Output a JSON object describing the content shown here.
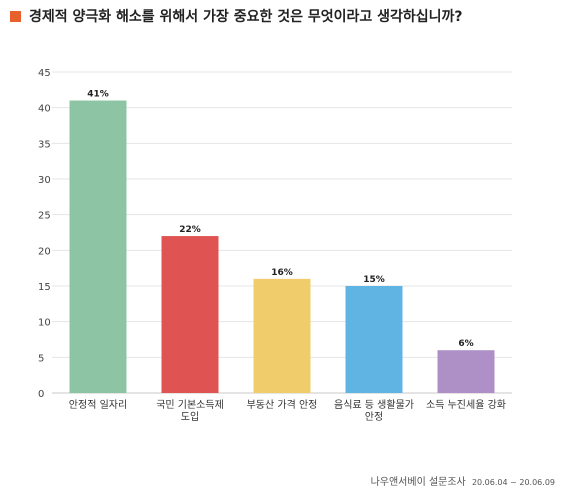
{
  "title": "경제적 양극화 해소를 위해서 가장 중요한 것은 무엇이라고 생각하십니까?",
  "colors": {
    "title_marker": "#E8612C",
    "grid": "#e4e4e4",
    "axis_text": "#444444"
  },
  "source": {
    "name": "나우앤서베이 설문조사",
    "dates": "20.06.04 ~ 20.06.09"
  },
  "chart_data": {
    "type": "bar",
    "title": "경제적 양극화 해소를 위해서 가장 중요한 것은 무엇이라고 생각하십니까?",
    "xlabel": "",
    "ylabel": "",
    "ylim": [
      0,
      45
    ],
    "yticks": [
      0,
      5,
      10,
      15,
      20,
      25,
      30,
      35,
      40,
      45
    ],
    "grid": true,
    "legend": "none",
    "categories": [
      [
        "안정적 일자리"
      ],
      [
        "국민 기본소득제",
        "도입"
      ],
      [
        "부동산 가격 안정"
      ],
      [
        "음식료 등 생활물가",
        "안정"
      ],
      [
        "소득 누진세율 강화"
      ]
    ],
    "values": [
      41,
      22,
      16,
      15,
      6
    ],
    "value_labels": [
      "41%",
      "22%",
      "16%",
      "15%",
      "6%"
    ],
    "bar_colors": [
      "#8DC5A4",
      "#E05353",
      "#F1CC6B",
      "#5FB4E4",
      "#AE90C7"
    ]
  }
}
